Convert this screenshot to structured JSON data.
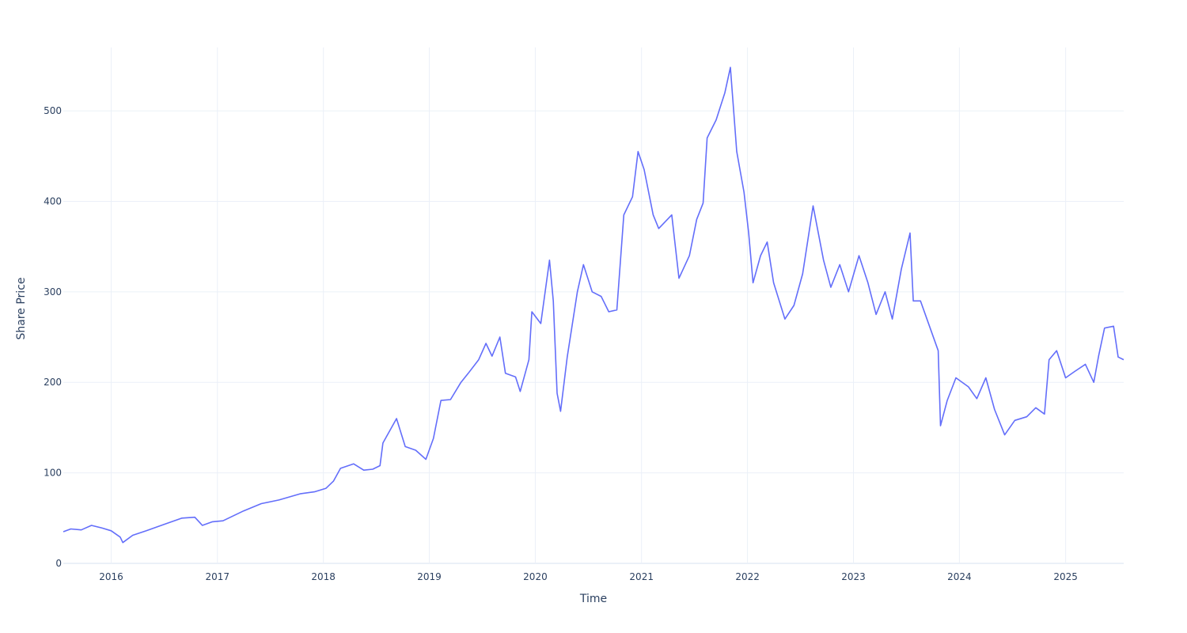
{
  "chart_data": {
    "type": "line",
    "title": "",
    "xlabel": "Time",
    "ylabel": "Share Price",
    "ylim": [
      0,
      570
    ],
    "xlim": [
      "2015-07-20",
      "2025-07-20"
    ],
    "y_ticks": [
      0,
      100,
      200,
      300,
      400,
      500
    ],
    "x_ticks": [
      {
        "date": "2016-01-01",
        "label": "2016"
      },
      {
        "date": "2017-01-01",
        "label": "2017"
      },
      {
        "date": "2018-01-01",
        "label": "2018"
      },
      {
        "date": "2019-01-01",
        "label": "2019"
      },
      {
        "date": "2020-01-01",
        "label": "2020"
      },
      {
        "date": "2021-01-01",
        "label": "2021"
      },
      {
        "date": "2022-01-01",
        "label": "2022"
      },
      {
        "date": "2023-01-01",
        "label": "2023"
      },
      {
        "date": "2024-01-01",
        "label": "2024"
      },
      {
        "date": "2025-01-01",
        "label": "2025"
      }
    ],
    "grid": true,
    "legend": false,
    "line_color": "#636efa",
    "grid_color": "#ebf0f8",
    "series": [
      {
        "points": [
          [
            "2015-07-20",
            35
          ],
          [
            "2015-08-15",
            38
          ],
          [
            "2015-09-20",
            37
          ],
          [
            "2015-10-25",
            42
          ],
          [
            "2015-12-01",
            39
          ],
          [
            "2016-01-01",
            36
          ],
          [
            "2016-02-01",
            29
          ],
          [
            "2016-02-10",
            23
          ],
          [
            "2016-03-15",
            31
          ],
          [
            "2016-05-01",
            36
          ],
          [
            "2016-07-01",
            43
          ],
          [
            "2016-09-01",
            50
          ],
          [
            "2016-10-15",
            51
          ],
          [
            "2016-11-10",
            42
          ],
          [
            "2016-12-15",
            46
          ],
          [
            "2017-01-20",
            47
          ],
          [
            "2017-04-01",
            58
          ],
          [
            "2017-06-01",
            66
          ],
          [
            "2017-08-01",
            70
          ],
          [
            "2017-10-15",
            77
          ],
          [
            "2017-12-01",
            79
          ],
          [
            "2018-01-10",
            83
          ],
          [
            "2018-02-05",
            91
          ],
          [
            "2018-03-01",
            105
          ],
          [
            "2018-04-15",
            110
          ],
          [
            "2018-05-20",
            103
          ],
          [
            "2018-06-20",
            104
          ],
          [
            "2018-07-15",
            108
          ],
          [
            "2018-07-25",
            133
          ],
          [
            "2018-09-10",
            160
          ],
          [
            "2018-10-10",
            129
          ],
          [
            "2018-11-15",
            125
          ],
          [
            "2018-12-20",
            115
          ],
          [
            "2019-01-15",
            138
          ],
          [
            "2019-02-10",
            180
          ],
          [
            "2019-03-15",
            181
          ],
          [
            "2019-04-20",
            200
          ],
          [
            "2019-05-15",
            210
          ],
          [
            "2019-06-20",
            225
          ],
          [
            "2019-07-15",
            243
          ],
          [
            "2019-08-05",
            229
          ],
          [
            "2019-09-01",
            250
          ],
          [
            "2019-09-20",
            210
          ],
          [
            "2019-10-25",
            206
          ],
          [
            "2019-11-10",
            190
          ],
          [
            "2019-12-10",
            225
          ],
          [
            "2019-12-20",
            278
          ],
          [
            "2020-01-20",
            265
          ],
          [
            "2020-02-19",
            335
          ],
          [
            "2020-03-03",
            290
          ],
          [
            "2020-03-16",
            188
          ],
          [
            "2020-03-28",
            168
          ],
          [
            "2020-04-20",
            228
          ],
          [
            "2020-05-25",
            300
          ],
          [
            "2020-06-15",
            330
          ],
          [
            "2020-07-15",
            300
          ],
          [
            "2020-08-15",
            295
          ],
          [
            "2020-09-10",
            278
          ],
          [
            "2020-10-08",
            280
          ],
          [
            "2020-11-01",
            385
          ],
          [
            "2020-12-01",
            405
          ],
          [
            "2020-12-20",
            455
          ],
          [
            "2021-01-10",
            435
          ],
          [
            "2021-02-10",
            385
          ],
          [
            "2021-03-01",
            370
          ],
          [
            "2021-04-15",
            385
          ],
          [
            "2021-05-10",
            315
          ],
          [
            "2021-06-15",
            340
          ],
          [
            "2021-07-10",
            380
          ],
          [
            "2021-08-01",
            398
          ],
          [
            "2021-08-15",
            470
          ],
          [
            "2021-09-15",
            490
          ],
          [
            "2021-10-15",
            520
          ],
          [
            "2021-11-03",
            548
          ],
          [
            "2021-11-25",
            455
          ],
          [
            "2021-12-20",
            410
          ],
          [
            "2022-01-05",
            365
          ],
          [
            "2022-01-20",
            310
          ],
          [
            "2022-02-15",
            340
          ],
          [
            "2022-03-10",
            355
          ],
          [
            "2022-04-01",
            310
          ],
          [
            "2022-05-10",
            270
          ],
          [
            "2022-06-10",
            285
          ],
          [
            "2022-07-10",
            320
          ],
          [
            "2022-08-15",
            395
          ],
          [
            "2022-09-20",
            335
          ],
          [
            "2022-10-15",
            305
          ],
          [
            "2022-11-15",
            330
          ],
          [
            "2022-12-15",
            300
          ],
          [
            "2023-01-20",
            340
          ],
          [
            "2023-02-20",
            310
          ],
          [
            "2023-03-20",
            275
          ],
          [
            "2023-04-20",
            300
          ],
          [
            "2023-05-15",
            270
          ],
          [
            "2023-06-15",
            325
          ],
          [
            "2023-07-15",
            365
          ],
          [
            "2023-07-26",
            290
          ],
          [
            "2023-08-20",
            290
          ],
          [
            "2023-09-20",
            262
          ],
          [
            "2023-10-20",
            235
          ],
          [
            "2023-10-28",
            152
          ],
          [
            "2023-11-20",
            180
          ],
          [
            "2023-12-20",
            205
          ],
          [
            "2024-02-01",
            195
          ],
          [
            "2024-03-01",
            182
          ],
          [
            "2024-04-01",
            205
          ],
          [
            "2024-05-01",
            170
          ],
          [
            "2024-06-05",
            142
          ],
          [
            "2024-07-10",
            158
          ],
          [
            "2024-08-20",
            162
          ],
          [
            "2024-09-20",
            172
          ],
          [
            "2024-10-20",
            165
          ],
          [
            "2024-11-05",
            225
          ],
          [
            "2024-12-01",
            235
          ],
          [
            "2025-01-01",
            205
          ],
          [
            "2025-02-01",
            212
          ],
          [
            "2025-03-10",
            220
          ],
          [
            "2025-04-08",
            200
          ],
          [
            "2025-04-25",
            230
          ],
          [
            "2025-05-15",
            260
          ],
          [
            "2025-06-15",
            262
          ],
          [
            "2025-07-01",
            228
          ],
          [
            "2025-07-20",
            225
          ]
        ]
      }
    ]
  }
}
